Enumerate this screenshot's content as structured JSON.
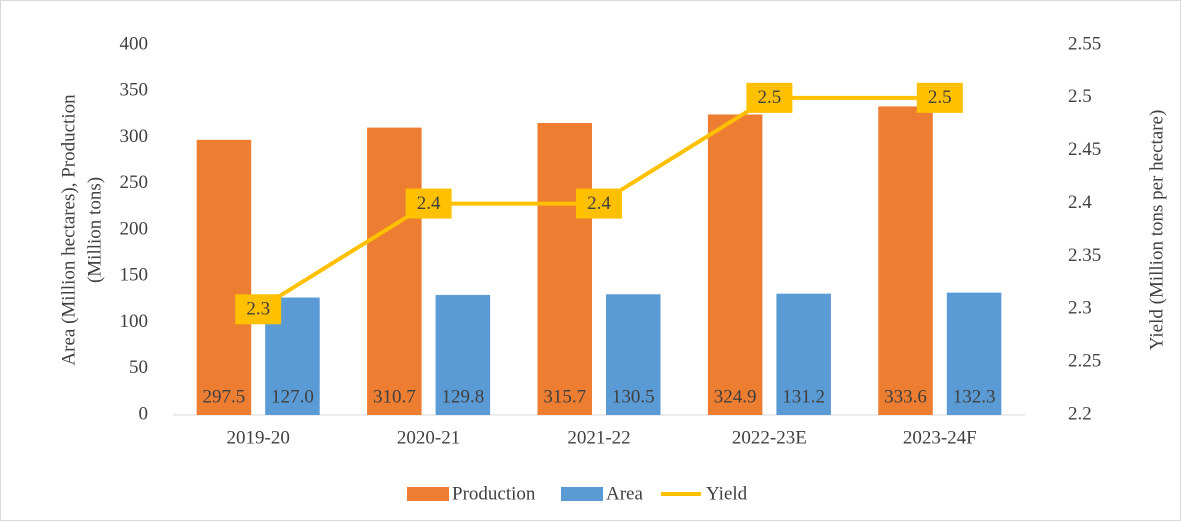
{
  "chart_data": {
    "type": "bar",
    "ylabel": [
      "Area (Million hectares), Production",
      "(Million tons)"
    ],
    "y2label": "Yield (Million tons per hectare)",
    "categories": [
      "2019-20",
      "2020-21",
      "2021-22",
      "2022-23E",
      "2023-24F"
    ],
    "series": [
      {
        "name": "Production",
        "color": "#ed7d31",
        "values": [
          297.5,
          310.7,
          315.7,
          324.9,
          333.6
        ]
      },
      {
        "name": "Area",
        "color": "#5b9bd5",
        "values": [
          127.0,
          129.8,
          130.5,
          131.2,
          132.3
        ],
        "value_labels": [
          "127.0",
          "129.8",
          "130.5",
          "131.2",
          "132.3"
        ]
      },
      {
        "name": "Yield",
        "type": "line",
        "axis": "y2",
        "color": "#ffc000",
        "values": [
          2.3,
          2.4,
          2.4,
          2.5,
          2.5
        ]
      }
    ],
    "ylim": [
      0,
      400
    ],
    "yticks": [
      0,
      50,
      100,
      150,
      200,
      250,
      300,
      350,
      400
    ],
    "y2lim": [
      2.2,
      2.55
    ],
    "y2ticks": [
      2.2,
      2.25,
      2.3,
      2.35,
      2.4,
      2.45,
      2.5,
      2.55
    ],
    "grid": false,
    "legend": "bottom"
  }
}
